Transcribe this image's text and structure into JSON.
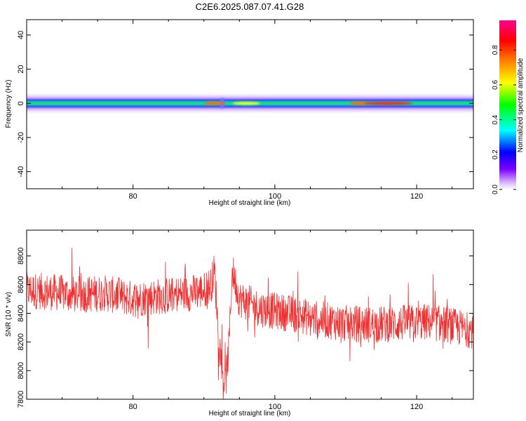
{
  "title": "C2E6.2025.087.07.41.G28",
  "chart_data": [
    {
      "type": "heatmap",
      "xlabel": "Height of straight line (km)",
      "ylabel": "Frequency (Hz)",
      "xlim": [
        65,
        128
      ],
      "ylim": [
        -50,
        49
      ],
      "xticks": [
        80,
        100,
        120
      ],
      "yticks": [
        -40,
        -20,
        0,
        20,
        40
      ],
      "colorbar": {
        "label": "Normalized spectral amplitude",
        "range": [
          0,
          0.97
        ],
        "ticks": [
          0.0,
          0.2,
          0.4,
          0.6,
          0.8
        ],
        "colors": [
          "#ffffff",
          "#7a00ff",
          "#0000ff",
          "#00ffff",
          "#00ff00",
          "#ffff00",
          "#ff8000",
          "#ff0000",
          "#ff00a0"
        ]
      },
      "band": {
        "center_freq": 0,
        "peaks": [
          {
            "x": 91.5,
            "amplitude": 0.85
          },
          {
            "x": 96,
            "amplitude": 0.7
          },
          {
            "x": 112,
            "amplitude": 0.82
          },
          {
            "x": 116,
            "amplitude": 0.95
          }
        ]
      }
    },
    {
      "type": "line",
      "xlabel": "Height of straight line (km)",
      "ylabel": "SNR (10 * v/v)",
      "xlim": [
        65,
        128
      ],
      "ylim": [
        7800,
        8980
      ],
      "xticks": [
        80,
        100,
        120
      ],
      "yticks": [
        7800,
        8000,
        8200,
        8400,
        8600,
        8800
      ],
      "color": "#f03030",
      "series": [
        {
          "x": [
            65,
            68,
            72,
            76,
            80,
            84,
            88,
            90,
            91,
            91.5,
            92,
            92.5,
            93,
            93.5,
            94,
            95,
            98,
            102,
            106,
            110,
            114,
            118,
            122,
            126,
            128
          ],
          "values": [
            8560,
            8550,
            8530,
            8540,
            8500,
            8520,
            8540,
            8560,
            8600,
            8700,
            8300,
            8020,
            7900,
            8150,
            8700,
            8500,
            8430,
            8400,
            8360,
            8330,
            8320,
            8330,
            8340,
            8300,
            8280
          ]
        }
      ]
    }
  ]
}
